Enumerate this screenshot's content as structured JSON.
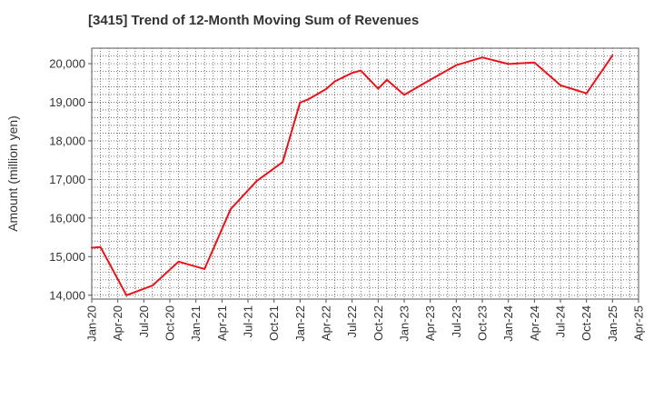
{
  "chart_data": {
    "type": "line",
    "title": "[3415]  Trend of 12-Month Moving Sum of Revenues",
    "ylabel": "Amount (million yen)",
    "xlabel": "",
    "xlim": [
      "2020-01",
      "2025-04"
    ],
    "ylim": [
      13900,
      20400
    ],
    "grid": true,
    "x_ticks": [
      "Jan-20",
      "Apr-20",
      "Jul-20",
      "Oct-20",
      "Jan-21",
      "Apr-21",
      "Jul-21",
      "Oct-21",
      "Jan-22",
      "Apr-22",
      "Jul-22",
      "Oct-22",
      "Jan-23",
      "Apr-23",
      "Jul-23",
      "Oct-23",
      "Jan-24",
      "Apr-24",
      "Jul-24",
      "Oct-24",
      "Jan-25",
      "Apr-25"
    ],
    "y_ticks": [
      "14,000",
      "15,000",
      "16,000",
      "17,000",
      "18,000",
      "19,000",
      "20,000"
    ],
    "series": [
      {
        "color": "#e8141c",
        "x": [
          "2020-01",
          "2020-02",
          "2020-05",
          "2020-08",
          "2020-11",
          "2021-02",
          "2021-05",
          "2021-08",
          "2021-11",
          "2022-01",
          "2022-02",
          "2022-04",
          "2022-05",
          "2022-07",
          "2022-08",
          "2022-10",
          "2022-11",
          "2023-01",
          "2023-04",
          "2023-07",
          "2023-10",
          "2024-01",
          "2024-04",
          "2024-07",
          "2024-10",
          "2025-01"
        ],
        "values": [
          15230,
          15250,
          14000,
          14250,
          14870,
          14680,
          16230,
          16960,
          17450,
          18990,
          19080,
          19340,
          19540,
          19760,
          19820,
          19350,
          19580,
          19190,
          19580,
          19960,
          20160,
          19990,
          20030,
          19440,
          19230,
          20210
        ]
      }
    ]
  }
}
